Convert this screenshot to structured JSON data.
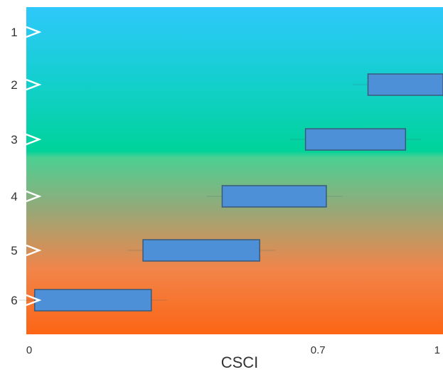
{
  "chart_data": {
    "type": "bar",
    "orientation": "horizontal-range",
    "xlabel": "CSCI",
    "ylabel": "",
    "title": "",
    "xlim": [
      0,
      1
    ],
    "x_ticks": [
      {
        "value": 0,
        "label": "0"
      },
      {
        "value": 0.7,
        "label": "0.7"
      },
      {
        "value": 1,
        "label": "1"
      }
    ],
    "grid": false,
    "legend": "none",
    "background_gradient": {
      "direction": "vertical",
      "stops": [
        {
          "color": "#2ec8fb",
          "at": 0.0
        },
        {
          "color": "#14cfcf",
          "at": 0.22
        },
        {
          "color": "#00d39a",
          "at": 0.44
        },
        {
          "color": "#4cd093",
          "at": 0.46
        },
        {
          "color": "#97a878",
          "at": 0.62
        },
        {
          "color": "#f1854a",
          "at": 0.8
        },
        {
          "color": "#fc6515",
          "at": 1.0
        }
      ]
    },
    "bar_color": "#4d90d8",
    "bar_border_color": "#3a5a7a",
    "categories": [
      "1",
      "2",
      "3",
      "4",
      "5",
      "6"
    ],
    "ranges": [
      {
        "category": "1",
        "start": null,
        "end": null
      },
      {
        "category": "2",
        "start": 0.82,
        "end": 1.0
      },
      {
        "category": "3",
        "start": 0.67,
        "end": 0.91
      },
      {
        "category": "4",
        "start": 0.47,
        "end": 0.72
      },
      {
        "category": "5",
        "start": 0.28,
        "end": 0.56
      },
      {
        "category": "6",
        "start": 0.02,
        "end": 0.3
      }
    ]
  }
}
